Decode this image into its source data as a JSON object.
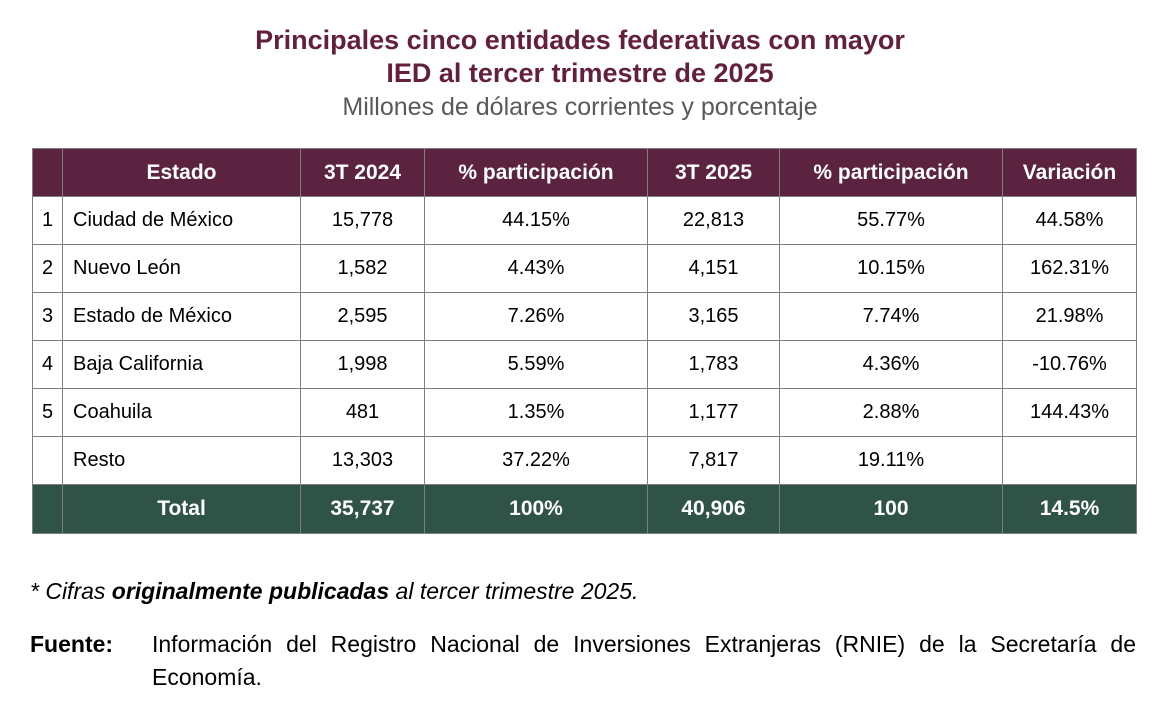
{
  "title": {
    "line1": "Principales cinco entidades federativas con mayor",
    "line2": "IED al tercer trimestre de 2025",
    "subtitle": "Millones de dólares corrientes y porcentaje"
  },
  "colors": {
    "title_wine": "#641F3D",
    "header_bg": "#5B2340",
    "total_bg": "#2F5447",
    "border_gray": "#7F7F7F",
    "subtitle_gray": "#595959"
  },
  "chart_data": {
    "type": "table",
    "title": "Principales cinco entidades federativas con mayor IED al tercer trimestre de 2025",
    "subtitle": "Millones de dólares corrientes y porcentaje",
    "columns": [
      "",
      "Estado",
      "3T 2024",
      "% participación",
      "3T 2025",
      "% participación",
      "Variación"
    ],
    "rows": [
      {
        "rank": "1",
        "estado": "Ciudad de México",
        "t2024": "15,778",
        "part2024": "44.15%",
        "t2025": "22,813",
        "part2025": "55.77%",
        "variacion": "44.58%"
      },
      {
        "rank": "2",
        "estado": "Nuevo León",
        "t2024": "1,582",
        "part2024": "4.43%",
        "t2025": "4,151",
        "part2025": "10.15%",
        "variacion": "162.31%"
      },
      {
        "rank": "3",
        "estado": "Estado de México",
        "t2024": "2,595",
        "part2024": "7.26%",
        "t2025": "3,165",
        "part2025": "7.74%",
        "variacion": "21.98%"
      },
      {
        "rank": "4",
        "estado": "Baja California",
        "t2024": "1,998",
        "part2024": "5.59%",
        "t2025": "1,783",
        "part2025": "4.36%",
        "variacion": "-10.76%"
      },
      {
        "rank": "5",
        "estado": "Coahuila",
        "t2024": "481",
        "part2024": "1.35%",
        "t2025": "1,177",
        "part2025": "2.88%",
        "variacion": "144.43%"
      },
      {
        "rank": "",
        "estado": "Resto",
        "t2024": "13,303",
        "part2024": "37.22%",
        "t2025": "7,817",
        "part2025": "19.11%",
        "variacion": ""
      }
    ],
    "total_row": {
      "label": "Total",
      "t2024": "35,737",
      "part2024": "100%",
      "t2025": "40,906",
      "part2025": "100",
      "variacion": "14.5%"
    }
  },
  "footnotes": {
    "note_prefix": "* Cifras ",
    "note_bold": "originalmente publicadas",
    "note_suffix": " al tercer trimestre 2025.",
    "source_label": "Fuente:",
    "source_text": "Información del Registro Nacional de Inversiones Extranjeras (RNIE) de la Secretaría de Economía."
  }
}
